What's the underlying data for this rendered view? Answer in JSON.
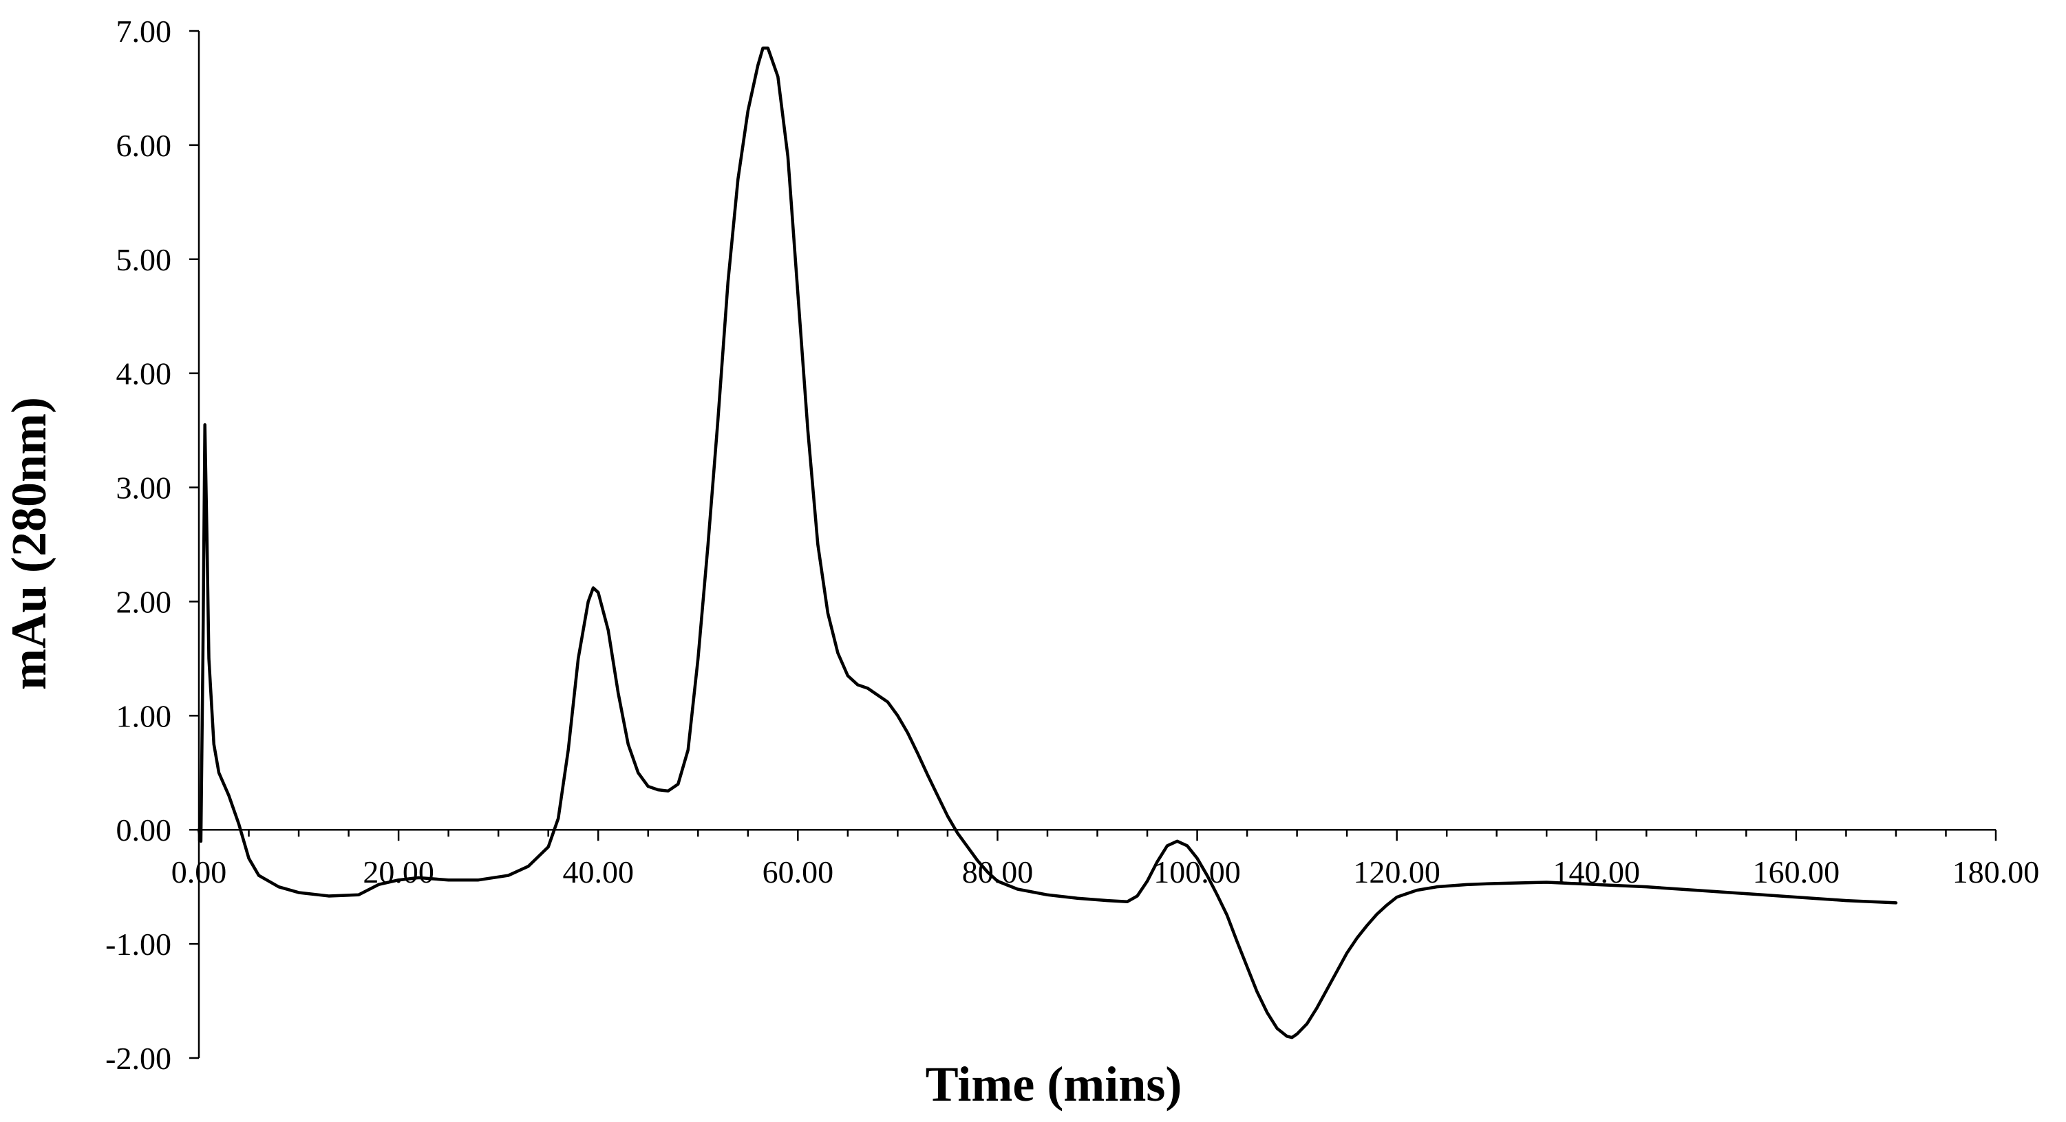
{
  "chart_data": {
    "type": "line",
    "title": "",
    "xlabel": "Time (mins)",
    "ylabel": "mAu (280nm)",
    "xlim": [
      0,
      180
    ],
    "ylim": [
      -2,
      7
    ],
    "x_ticks": [
      "0.00",
      "20.00",
      "40.00",
      "60.00",
      "80.00",
      "100.00",
      "120.00",
      "140.00",
      "160.00",
      "180.00"
    ],
    "y_ticks": [
      "7.00",
      "6.00",
      "5.00",
      "4.00",
      "3.00",
      "2.00",
      "1.00",
      "0.00",
      "-1.00",
      "-2.00"
    ],
    "grid": false,
    "legend": "none",
    "line_color": "#000000",
    "series": [
      {
        "values": [
          [
            0.0,
            0.0
          ],
          [
            0.2,
            -0.1
          ],
          [
            0.4,
            1.5
          ],
          [
            0.6,
            3.55
          ],
          [
            0.8,
            2.6
          ],
          [
            1.0,
            1.5
          ],
          [
            1.5,
            0.75
          ],
          [
            2.0,
            0.5
          ],
          [
            3.0,
            0.3
          ],
          [
            4.0,
            0.05
          ],
          [
            5.0,
            -0.25
          ],
          [
            6.0,
            -0.4
          ],
          [
            8.0,
            -0.5
          ],
          [
            10.0,
            -0.55
          ],
          [
            13.0,
            -0.58
          ],
          [
            16.0,
            -0.57
          ],
          [
            18.0,
            -0.48
          ],
          [
            20.0,
            -0.44
          ],
          [
            22.0,
            -0.42
          ],
          [
            25.0,
            -0.44
          ],
          [
            28.0,
            -0.44
          ],
          [
            31.0,
            -0.4
          ],
          [
            33.0,
            -0.32
          ],
          [
            35.0,
            -0.15
          ],
          [
            36.0,
            0.1
          ],
          [
            37.0,
            0.7
          ],
          [
            38.0,
            1.5
          ],
          [
            39.0,
            2.0
          ],
          [
            39.5,
            2.12
          ],
          [
            40.0,
            2.08
          ],
          [
            41.0,
            1.75
          ],
          [
            42.0,
            1.2
          ],
          [
            43.0,
            0.75
          ],
          [
            44.0,
            0.5
          ],
          [
            45.0,
            0.38
          ],
          [
            46.0,
            0.35
          ],
          [
            47.0,
            0.34
          ],
          [
            48.0,
            0.4
          ],
          [
            49.0,
            0.7
          ],
          [
            50.0,
            1.5
          ],
          [
            51.0,
            2.5
          ],
          [
            52.0,
            3.6
          ],
          [
            53.0,
            4.8
          ],
          [
            54.0,
            5.7
          ],
          [
            55.0,
            6.3
          ],
          [
            56.0,
            6.7
          ],
          [
            56.5,
            6.85
          ],
          [
            57.0,
            6.85
          ],
          [
            58.0,
            6.6
          ],
          [
            59.0,
            5.9
          ],
          [
            60.0,
            4.7
          ],
          [
            61.0,
            3.5
          ],
          [
            62.0,
            2.5
          ],
          [
            63.0,
            1.9
          ],
          [
            64.0,
            1.55
          ],
          [
            65.0,
            1.35
          ],
          [
            66.0,
            1.27
          ],
          [
            67.0,
            1.24
          ],
          [
            68.0,
            1.18
          ],
          [
            69.0,
            1.12
          ],
          [
            70.0,
            1.0
          ],
          [
            71.0,
            0.85
          ],
          [
            72.0,
            0.67
          ],
          [
            73.0,
            0.48
          ],
          [
            74.0,
            0.3
          ],
          [
            75.0,
            0.12
          ],
          [
            76.0,
            -0.03
          ],
          [
            77.0,
            -0.15
          ],
          [
            78.0,
            -0.27
          ],
          [
            79.0,
            -0.37
          ],
          [
            80.0,
            -0.45
          ],
          [
            82.0,
            -0.52
          ],
          [
            85.0,
            -0.57
          ],
          [
            88.0,
            -0.6
          ],
          [
            91.0,
            -0.62
          ],
          [
            93.0,
            -0.63
          ],
          [
            94.0,
            -0.58
          ],
          [
            95.0,
            -0.45
          ],
          [
            96.0,
            -0.28
          ],
          [
            97.0,
            -0.14
          ],
          [
            98.0,
            -0.1
          ],
          [
            99.0,
            -0.14
          ],
          [
            100.0,
            -0.25
          ],
          [
            101.0,
            -0.4
          ],
          [
            102.0,
            -0.57
          ],
          [
            103.0,
            -0.75
          ],
          [
            104.0,
            -0.98
          ],
          [
            105.0,
            -1.2
          ],
          [
            106.0,
            -1.42
          ],
          [
            107.0,
            -1.6
          ],
          [
            108.0,
            -1.74
          ],
          [
            109.0,
            -1.81
          ],
          [
            109.5,
            -1.82
          ],
          [
            110.0,
            -1.79
          ],
          [
            111.0,
            -1.7
          ],
          [
            112.0,
            -1.56
          ],
          [
            113.0,
            -1.4
          ],
          [
            114.0,
            -1.24
          ],
          [
            115.0,
            -1.08
          ],
          [
            116.0,
            -0.95
          ],
          [
            117.0,
            -0.84
          ],
          [
            118.0,
            -0.74
          ],
          [
            119.0,
            -0.66
          ],
          [
            120.0,
            -0.59
          ],
          [
            122.0,
            -0.53
          ],
          [
            124.0,
            -0.5
          ],
          [
            127.0,
            -0.48
          ],
          [
            130.0,
            -0.47
          ],
          [
            135.0,
            -0.46
          ],
          [
            140.0,
            -0.48
          ],
          [
            145.0,
            -0.5
          ],
          [
            150.0,
            -0.53
          ],
          [
            155.0,
            -0.56
          ],
          [
            160.0,
            -0.59
          ],
          [
            165.0,
            -0.62
          ],
          [
            170.0,
            -0.64
          ]
        ]
      }
    ]
  }
}
